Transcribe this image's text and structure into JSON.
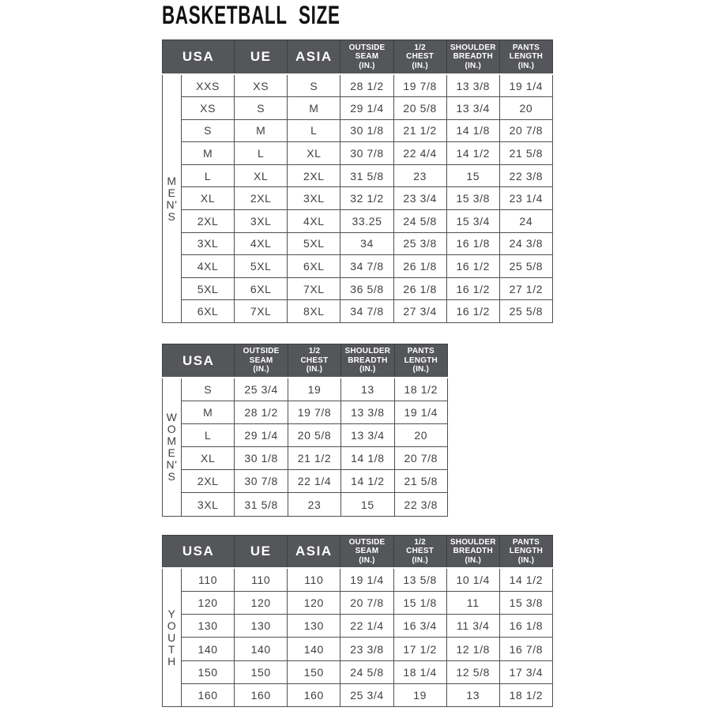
{
  "title": "BASKETBALL SIZE",
  "colors": {
    "header_bg": "#55565a",
    "header_text": "#ffffff",
    "body_text": "#414042",
    "border": "#4f5052",
    "title_text": "#111111",
    "page_bg": "#ffffff"
  },
  "tables": [
    {
      "id": "mens",
      "section_label": "MEN'S",
      "label_letters": [
        "M",
        "E",
        "N'",
        "S"
      ],
      "headers": [
        [
          "USA"
        ],
        [
          "UE"
        ],
        [
          "ASIA"
        ],
        [
          "OUTSIDE",
          "SEAM",
          "(IN.)"
        ],
        [
          "1/2",
          "CHEST",
          "(IN.)"
        ],
        [
          "SHOULDER",
          "BREADTH",
          "(IN.)"
        ],
        [
          "PANTS",
          "LENGTH",
          "(IN.)"
        ]
      ],
      "rows": [
        [
          "XXS",
          "XS",
          "S",
          "28 1/2",
          "19 7/8",
          "13 3/8",
          "19 1/4"
        ],
        [
          "XS",
          "S",
          "M",
          "29 1/4",
          "20 5/8",
          "13 3/4",
          "20"
        ],
        [
          "S",
          "M",
          "L",
          "30 1/8",
          "21 1/2",
          "14 1/8",
          "20 7/8"
        ],
        [
          "M",
          "L",
          "XL",
          "30 7/8",
          "22 4/4",
          "14 1/2",
          "21 5/8"
        ],
        [
          "L",
          "XL",
          "2XL",
          "31 5/8",
          "23",
          "15",
          "22 3/8"
        ],
        [
          "XL",
          "2XL",
          "3XL",
          "32 1/2",
          "23 3/4",
          "15 3/8",
          "23 1/4"
        ],
        [
          "2XL",
          "3XL",
          "4XL",
          "33.25",
          "24 5/8",
          "15 3/4",
          "24"
        ],
        [
          "3XL",
          "4XL",
          "5XL",
          "34",
          "25 3/8",
          "16 1/8",
          "24 3/8"
        ],
        [
          "4XL",
          "5XL",
          "6XL",
          "34 7/8",
          "26 1/8",
          "16 1/2",
          "25 5/8"
        ],
        [
          "5XL",
          "6XL",
          "7XL",
          "36 5/8",
          "26 1/8",
          "16 1/2",
          "27 1/2"
        ],
        [
          "6XL",
          "7XL",
          "8XL",
          "34 7/8",
          "27 3/4",
          "16 1/2",
          "25 5/8"
        ]
      ]
    },
    {
      "id": "womens",
      "section_label": "WOMEN'S",
      "label_letters": [
        "W",
        "O",
        "M",
        "E",
        "N'",
        "S"
      ],
      "headers": [
        [
          "USA"
        ],
        [
          "OUTSIDE",
          "SEAM",
          "(IN.)"
        ],
        [
          "1/2",
          "CHEST",
          "(IN.)"
        ],
        [
          "SHOULDER",
          "BREADTH",
          "(IN.)"
        ],
        [
          "PANTS",
          "LENGTH",
          "(IN.)"
        ]
      ],
      "rows": [
        [
          "S",
          "25 3/4",
          "19",
          "13",
          "18 1/2"
        ],
        [
          "M",
          "28 1/2",
          "19 7/8",
          "13 3/8",
          "19 1/4"
        ],
        [
          "L",
          "29 1/4",
          "20 5/8",
          "13 3/4",
          "20"
        ],
        [
          "XL",
          "30 1/8",
          "21 1/2",
          "14 1/8",
          "20 7/8"
        ],
        [
          "2XL",
          "30 7/8",
          "22 1/4",
          "14 1/2",
          "21 5/8"
        ],
        [
          "3XL",
          "31 5/8",
          "23",
          "15",
          "22 3/8"
        ]
      ]
    },
    {
      "id": "youth",
      "section_label": "YOUTH",
      "label_letters": [
        "Y",
        "O",
        "U",
        "T",
        "H"
      ],
      "headers": [
        [
          "USA"
        ],
        [
          "UE"
        ],
        [
          "ASIA"
        ],
        [
          "OUTSIDE",
          "SEAM",
          "(IN.)"
        ],
        [
          "1/2",
          "CHEST",
          "(IN.)"
        ],
        [
          "SHOULDER",
          "BREADTH",
          "(IN.)"
        ],
        [
          "PANTS",
          "LENGTH",
          "(IN.)"
        ]
      ],
      "rows": [
        [
          "110",
          "110",
          "110",
          "19 1/4",
          "13 5/8",
          "10 1/4",
          "14 1/2"
        ],
        [
          "120",
          "120",
          "120",
          "20 7/8",
          "15 1/8",
          "11",
          "15 3/8"
        ],
        [
          "130",
          "130",
          "130",
          "22 1/4",
          "16 3/4",
          "11 3/4",
          "16 1/8"
        ],
        [
          "140",
          "140",
          "140",
          "23 3/8",
          "17 1/2",
          "12 1/8",
          "16 7/8"
        ],
        [
          "150",
          "150",
          "150",
          "24 5/8",
          "18 1/4",
          "12 5/8",
          "17 3/4"
        ],
        [
          "160",
          "160",
          "160",
          "25 3/4",
          "19",
          "13",
          "18 1/2"
        ]
      ]
    }
  ]
}
